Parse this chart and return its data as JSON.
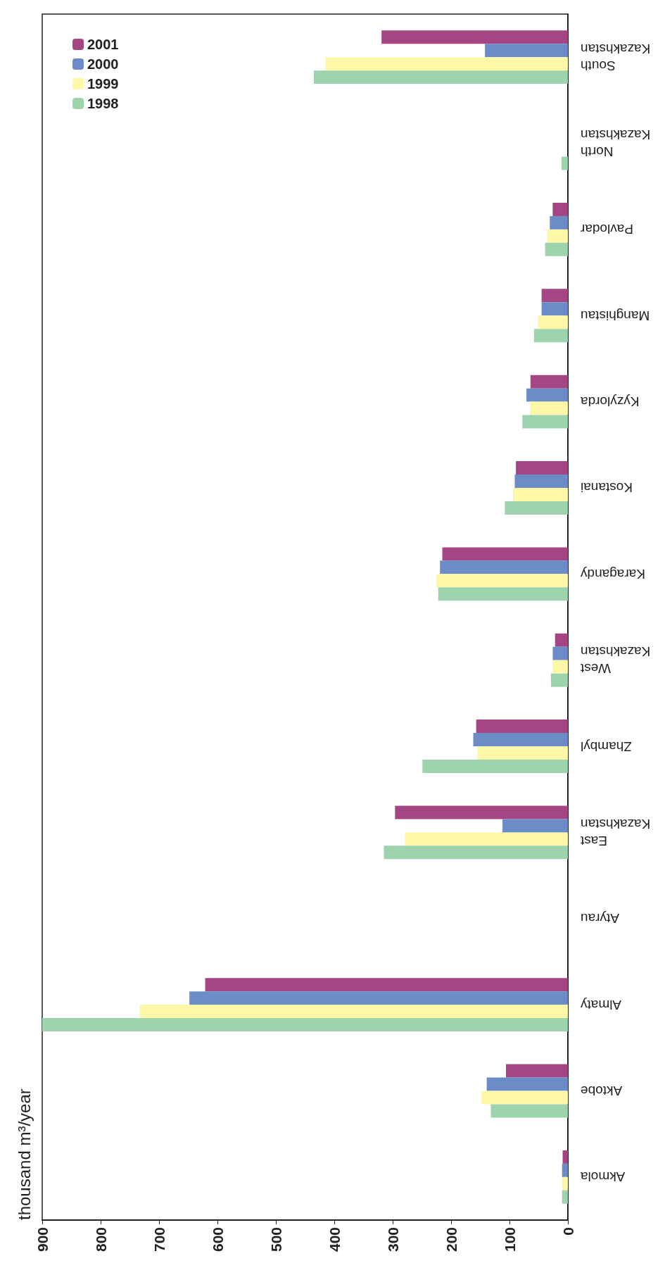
{
  "chart_data": {
    "type": "bar",
    "orientation": "horizontal",
    "ylabel": "thousand m³/year",
    "categories": [
      "South Kazakhstan",
      "North Kazakhstan",
      "Pavlodar",
      "Manghistau",
      "Kyzylorda",
      "Kostanai",
      "Karagandy",
      "West Kazakhstan",
      "Zhambyl",
      "East Kazakhstan",
      "Atyrau",
      "Almaty",
      "Aktobe",
      "Akmola"
    ],
    "series": [
      {
        "name": "2001",
        "color": "#a44584",
        "values": [
          319,
          null,
          26,
          45,
          64,
          89,
          215,
          22,
          157,
          296,
          null,
          621,
          106,
          9
        ]
      },
      {
        "name": "2000",
        "color": "#6b8cc7",
        "values": [
          142,
          null,
          31,
          45,
          71,
          91,
          219,
          26,
          162,
          112,
          null,
          648,
          139,
          10
        ]
      },
      {
        "name": "1999",
        "color": "#fff7a8",
        "values": [
          415,
          null,
          36,
          51,
          65,
          94,
          225,
          26,
          155,
          279,
          null,
          733,
          148,
          10
        ]
      },
      {
        "name": "1998",
        "color": "#9dd4ae",
        "values": [
          435,
          11,
          39,
          58,
          78,
          108,
          222,
          29,
          249,
          315,
          null,
          900,
          132,
          10
        ]
      }
    ],
    "xlim": [
      900,
      0
    ],
    "xticks": [
      900,
      800,
      700,
      600,
      500,
      400,
      300,
      200,
      100,
      0
    ],
    "legend": "top left"
  }
}
